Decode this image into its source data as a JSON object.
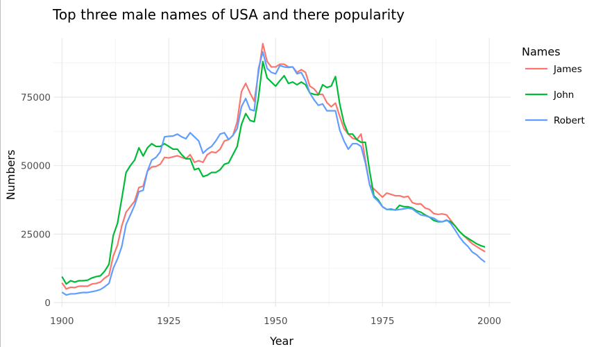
{
  "chart_data": {
    "type": "line",
    "title": "Top three male names of USA and there popularity",
    "xlabel": "Year",
    "ylabel": "Numbers",
    "xlim": [
      1900,
      2000
    ],
    "ylim": [
      0,
      95000
    ],
    "xticks": [
      1900,
      1925,
      1950,
      1975,
      2000
    ],
    "yticks": [
      0,
      25000,
      50000,
      75000
    ],
    "grid": true,
    "legend_title": "Names",
    "legend_position": "right",
    "x": [
      1900,
      1901,
      1902,
      1903,
      1904,
      1905,
      1906,
      1907,
      1908,
      1909,
      1910,
      1911,
      1912,
      1913,
      1914,
      1915,
      1916,
      1917,
      1918,
      1919,
      1920,
      1921,
      1922,
      1923,
      1924,
      1925,
      1926,
      1927,
      1928,
      1929,
      1930,
      1931,
      1932,
      1933,
      1934,
      1935,
      1936,
      1937,
      1938,
      1939,
      1940,
      1941,
      1942,
      1943,
      1944,
      1945,
      1946,
      1947,
      1948,
      1949,
      1950,
      1951,
      1952,
      1953,
      1954,
      1955,
      1956,
      1957,
      1958,
      1959,
      1960,
      1961,
      1962,
      1963,
      1964,
      1965,
      1966,
      1967,
      1968,
      1969,
      1970,
      1971,
      1972,
      1973,
      1974,
      1975,
      1976,
      1977,
      1978,
      1979,
      1980,
      1981,
      1982,
      1983,
      1984,
      1985,
      1986,
      1987,
      1988,
      1989,
      1990,
      1991,
      1992,
      1993,
      1994,
      1995,
      1996,
      1997,
      1998,
      1999
    ],
    "series": [
      {
        "name": "James",
        "color": "#F8766D",
        "values": [
          7200,
          5000,
          5600,
          5500,
          6000,
          6000,
          6000,
          6800,
          7000,
          7500,
          9000,
          10000,
          17000,
          21000,
          28000,
          33000,
          35000,
          37000,
          42000,
          42500,
          48000,
          49500,
          49700,
          50500,
          53000,
          52800,
          53200,
          53600,
          53000,
          52500,
          54000,
          51200,
          51800,
          51200,
          54000,
          55000,
          54700,
          56000,
          59000,
          59500,
          61000,
          66000,
          77000,
          80000,
          76500,
          73500,
          84000,
          94500,
          88000,
          86000,
          86000,
          87000,
          87000,
          86000,
          86000,
          84000,
          85000,
          84000,
          79000,
          78000,
          76000,
          76000,
          73000,
          71500,
          72800,
          68000,
          63500,
          61500,
          60000,
          59500,
          61500,
          52000,
          43000,
          41500,
          40000,
          38500,
          40000,
          39500,
          39000,
          39000,
          38500,
          38800,
          36500,
          36000,
          36000,
          34500,
          34000,
          32500,
          32200,
          32400,
          32000,
          30000,
          28000,
          26000,
          24500,
          23000,
          21500,
          20500,
          19500,
          18600
        ]
      },
      {
        "name": "John",
        "color": "#00BA38",
        "values": [
          9500,
          6800,
          8000,
          7500,
          8000,
          8000,
          8200,
          9000,
          9500,
          9800,
          11500,
          14000,
          24500,
          29000,
          38000,
          47500,
          50000,
          52000,
          56500,
          53500,
          56500,
          58000,
          57000,
          57000,
          58000,
          57000,
          56000,
          56000,
          54000,
          52500,
          52500,
          48500,
          49000,
          46000,
          46500,
          47500,
          47500,
          48500,
          50500,
          51000,
          54000,
          57000,
          65000,
          69000,
          66500,
          66000,
          75000,
          88000,
          82000,
          80500,
          79000,
          81000,
          82800,
          80000,
          80500,
          79500,
          80500,
          79500,
          76500,
          76000,
          75800,
          79500,
          78500,
          79000,
          82500,
          72500,
          65500,
          61500,
          61500,
          59500,
          58500,
          58500,
          48000,
          39000,
          37500,
          35000,
          34000,
          34000,
          33800,
          35500,
          35000,
          35000,
          34500,
          33500,
          33000,
          32000,
          31200,
          30000,
          29500,
          29500,
          30000,
          29500,
          28000,
          26000,
          24500,
          23500,
          22500,
          21500,
          20800,
          20300
        ]
      },
      {
        "name": "Robert",
        "color": "#619CFF",
        "values": [
          3800,
          2800,
          3200,
          3200,
          3500,
          3700,
          3700,
          4000,
          4300,
          4800,
          5800,
          7000,
          12500,
          16000,
          20500,
          28500,
          32000,
          35500,
          40500,
          41000,
          48000,
          52000,
          53000,
          55000,
          60500,
          60700,
          60800,
          61500,
          60500,
          59800,
          62000,
          60500,
          59000,
          54500,
          56000,
          57000,
          59000,
          61500,
          62000,
          59500,
          61000,
          63500,
          71500,
          74500,
          70500,
          70000,
          85500,
          91500,
          85500,
          84000,
          83500,
          86500,
          86000,
          85800,
          86000,
          83500,
          84000,
          81000,
          76500,
          74000,
          72000,
          72500,
          70000,
          70000,
          70000,
          63000,
          59000,
          56000,
          58000,
          58000,
          57000,
          51000,
          43000,
          38500,
          37000,
          35000,
          34000,
          34200,
          33800,
          34000,
          34200,
          34500,
          34200,
          33000,
          32000,
          31700,
          31200,
          30800,
          29800,
          29500,
          30200,
          28800,
          26500,
          24000,
          22000,
          20500,
          18500,
          17500,
          16000,
          14800
        ]
      }
    ]
  }
}
